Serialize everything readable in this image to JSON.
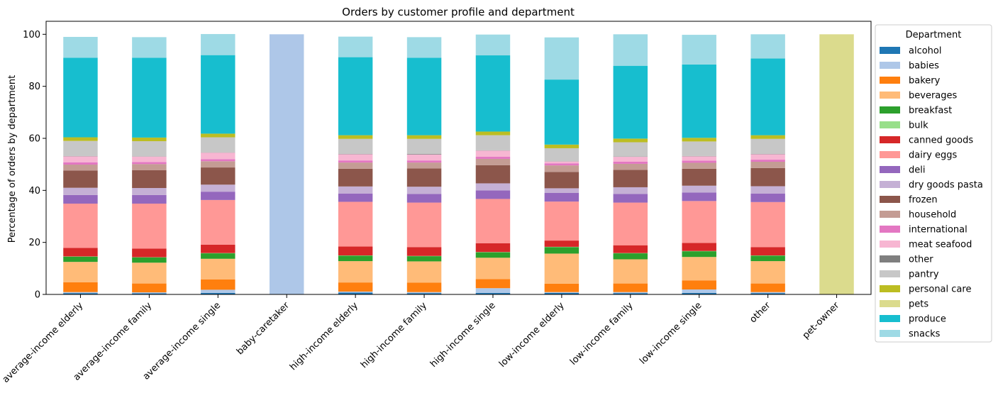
{
  "chart_data": {
    "type": "bar",
    "stacked": true,
    "title": "Orders by customer profile and department",
    "xlabel": "",
    "ylabel": "Percentage of orders by department",
    "ylim": [
      0,
      105
    ],
    "yticks": [
      0,
      20,
      40,
      60,
      80,
      100
    ],
    "legend": {
      "title": "Department",
      "placement": "right-outside"
    },
    "categories": [
      "average-income elderly",
      "average-income family",
      "average-income single",
      "baby-caretaker",
      "high-income elderly",
      "high-income family",
      "high-income single",
      "low-income elderly",
      "low-income family",
      "low-income single",
      "other",
      "pet-owner"
    ],
    "series": [
      {
        "name": "alcohol",
        "color": "#1f77b4",
        "values": [
          0.5,
          0.4,
          0.6,
          0,
          0.7,
          0.5,
          0.6,
          0.6,
          0.5,
          0.6,
          0.5,
          0
        ]
      },
      {
        "name": "babies",
        "color": "#aec7e8",
        "values": [
          0.4,
          0.4,
          1.2,
          100,
          0.4,
          0.4,
          1.8,
          0.3,
          0.4,
          1.3,
          0.4,
          0
        ]
      },
      {
        "name": "bakery",
        "color": "#ff7f0e",
        "values": [
          3.8,
          3.4,
          4.0,
          0,
          3.5,
          3.6,
          3.5,
          3.2,
          3.3,
          3.5,
          3.3,
          0
        ]
      },
      {
        "name": "beverages",
        "color": "#ffbb78",
        "values": [
          7.8,
          8.0,
          7.9,
          0,
          8.2,
          8.2,
          8.2,
          11.6,
          9.3,
          9.0,
          8.6,
          0
        ]
      },
      {
        "name": "breakfast",
        "color": "#2ca02c",
        "values": [
          2.0,
          2.0,
          2.1,
          0,
          2.1,
          2.0,
          2.1,
          2.5,
          2.3,
          2.2,
          2.1,
          0
        ]
      },
      {
        "name": "bulk",
        "color": "#98df8a",
        "values": [
          0.1,
          0.1,
          0.1,
          0,
          0.1,
          0.1,
          0.1,
          0.1,
          0.1,
          0.1,
          0.1,
          0
        ]
      },
      {
        "name": "canned goods",
        "color": "#d62728",
        "values": [
          3.3,
          3.3,
          3.2,
          0,
          3.4,
          3.4,
          3.4,
          2.4,
          3.0,
          3.1,
          3.2,
          0
        ]
      },
      {
        "name": "dairy eggs",
        "color": "#ff9896",
        "values": [
          17.0,
          17.3,
          17.2,
          0,
          17.2,
          17.1,
          17.0,
          15.0,
          16.4,
          16.1,
          17.3,
          0
        ]
      },
      {
        "name": "deli",
        "color": "#9467bd",
        "values": [
          3.3,
          3.3,
          3.2,
          0,
          3.2,
          3.3,
          3.3,
          3.3,
          3.3,
          3.3,
          3.3,
          0
        ]
      },
      {
        "name": "dry goods pasta",
        "color": "#c5b0d5",
        "values": [
          2.8,
          2.7,
          2.7,
          0,
          2.7,
          2.8,
          2.7,
          1.8,
          2.6,
          2.6,
          2.8,
          0
        ]
      },
      {
        "name": "frozen",
        "color": "#8c564b",
        "values": [
          6.6,
          6.9,
          6.6,
          0,
          6.8,
          7.0,
          7.0,
          6.3,
          6.7,
          6.5,
          7.0,
          0
        ]
      },
      {
        "name": "household",
        "color": "#c49c94",
        "values": [
          2.3,
          2.3,
          2.4,
          0,
          2.4,
          2.3,
          2.4,
          2.5,
          2.3,
          2.3,
          2.4,
          0
        ]
      },
      {
        "name": "international",
        "color": "#e377c2",
        "values": [
          0.9,
          0.8,
          0.8,
          0,
          0.8,
          0.8,
          0.8,
          0.8,
          0.8,
          0.8,
          0.8,
          0
        ]
      },
      {
        "name": "meat seafood",
        "color": "#f7b6d2",
        "values": [
          2.3,
          2.1,
          2.5,
          0,
          2.4,
          2.3,
          2.4,
          0.7,
          1.9,
          1.7,
          2.1,
          0
        ]
      },
      {
        "name": "other",
        "color": "#7f7f7f",
        "values": [
          0.1,
          0.1,
          0.1,
          0,
          0.1,
          0.2,
          0.1,
          0.1,
          0.1,
          0.1,
          0.1,
          0
        ]
      },
      {
        "name": "pantry",
        "color": "#c7c7c7",
        "values": [
          5.8,
          5.8,
          5.8,
          0,
          5.8,
          5.8,
          5.8,
          5.0,
          5.5,
          5.6,
          5.8,
          0
        ]
      },
      {
        "name": "personal care",
        "color": "#bcbd22",
        "values": [
          1.4,
          1.4,
          1.4,
          0,
          1.4,
          1.4,
          1.4,
          1.4,
          1.4,
          1.4,
          1.4,
          0
        ]
      },
      {
        "name": "pets",
        "color": "#dbdb8d",
        "values": [
          0,
          0,
          0,
          0,
          0,
          0,
          0,
          0,
          0,
          0,
          0,
          100
        ]
      },
      {
        "name": "produce",
        "color": "#17becf",
        "values": [
          30.6,
          30.7,
          30.2,
          0,
          30.0,
          29.8,
          29.3,
          25.0,
          28.0,
          28.2,
          29.5,
          0
        ]
      },
      {
        "name": "snacks",
        "color": "#9edae5",
        "values": [
          8.0,
          7.9,
          8.1,
          0,
          7.9,
          7.9,
          8.0,
          16.2,
          12.1,
          11.4,
          9.3,
          0
        ]
      }
    ]
  }
}
